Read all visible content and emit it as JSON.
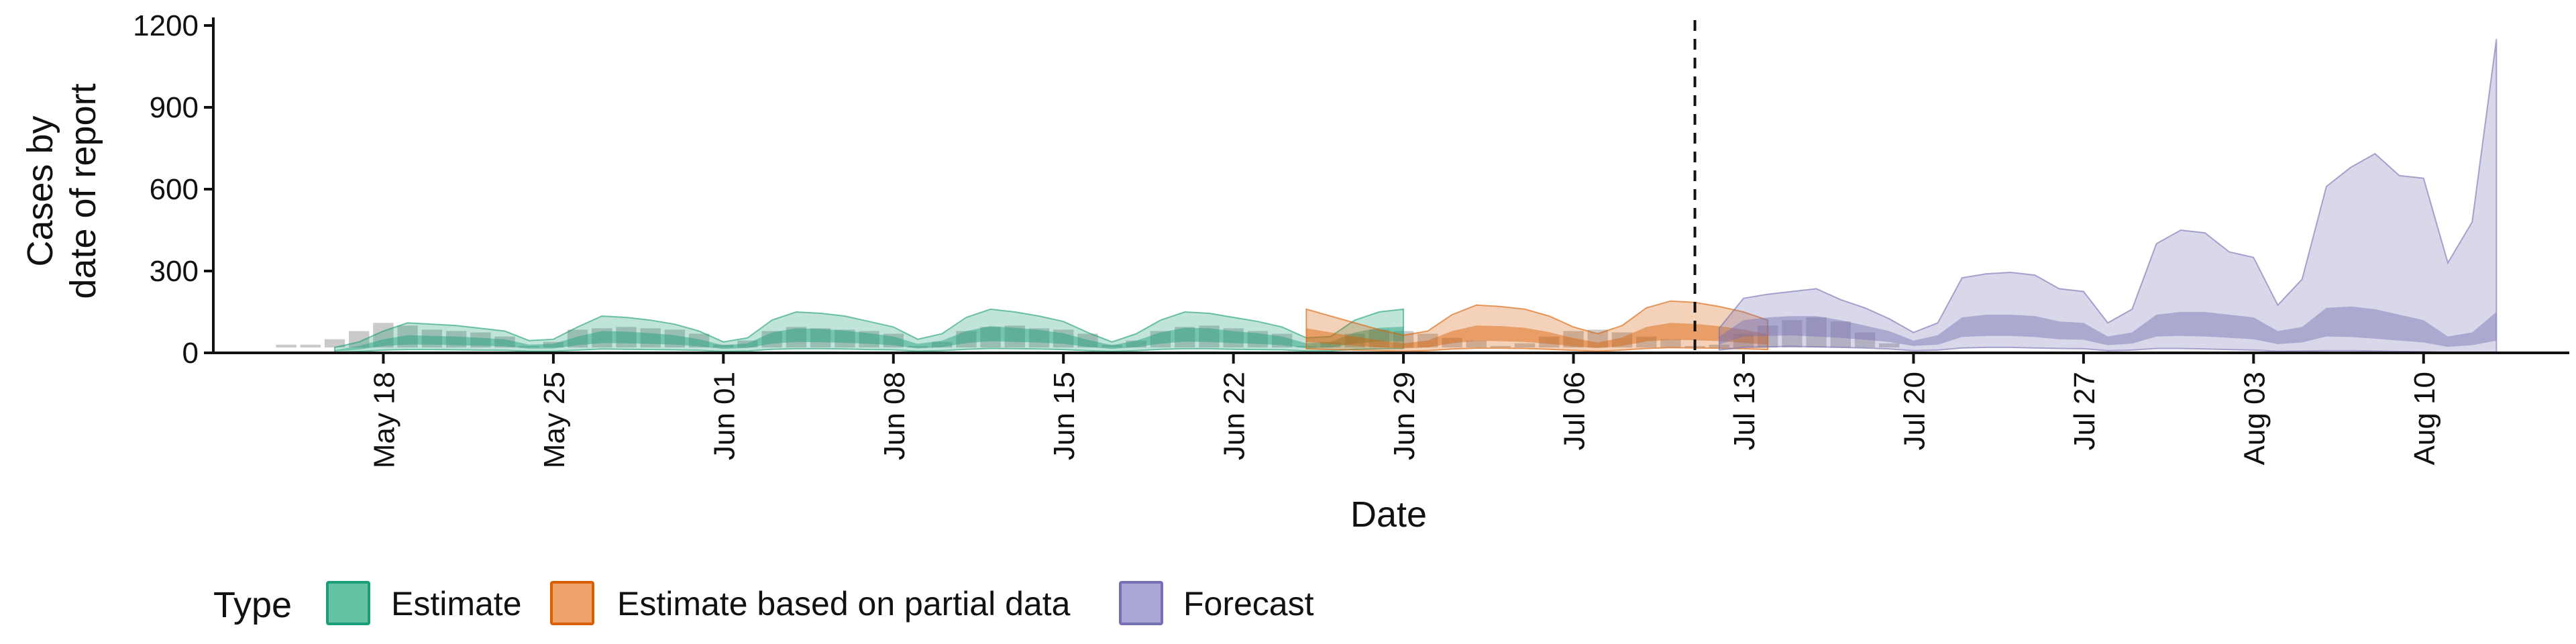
{
  "chart_data": {
    "type": "area",
    "xlabel": "Date",
    "ylabel_lines": [
      "Cases by",
      "date of report"
    ],
    "ylim": [
      0,
      1200
    ],
    "yticks": [
      0,
      300,
      600,
      900,
      1200
    ],
    "x_range": [
      "2020-05-11",
      "2020-08-16"
    ],
    "xticks": [
      {
        "date": "2020-05-18",
        "label": "May 18"
      },
      {
        "date": "2020-05-25",
        "label": "May 25"
      },
      {
        "date": "2020-06-01",
        "label": "Jun 01"
      },
      {
        "date": "2020-06-08",
        "label": "Jun 08"
      },
      {
        "date": "2020-06-15",
        "label": "Jun 15"
      },
      {
        "date": "2020-06-22",
        "label": "Jun 22"
      },
      {
        "date": "2020-06-29",
        "label": "Jun 29"
      },
      {
        "date": "2020-07-06",
        "label": "Jul 06"
      },
      {
        "date": "2020-07-13",
        "label": "Jul 13"
      },
      {
        "date": "2020-07-20",
        "label": "Jul 20"
      },
      {
        "date": "2020-07-27",
        "label": "Jul 27"
      },
      {
        "date": "2020-08-03",
        "label": "Aug 03"
      },
      {
        "date": "2020-08-10",
        "label": "Aug 10"
      }
    ],
    "forecast_line_date": "2020-07-11.8",
    "legend": {
      "title": "Type",
      "position": "bottom",
      "items": [
        {
          "label": "Estimate",
          "fill": "#66c2a5",
          "stroke": "#1b9e77"
        },
        {
          "label": "Estimate based on partial data",
          "fill": "#f0a36a",
          "stroke": "#d95f02"
        },
        {
          "label": "Forecast",
          "fill": "#aaa6d6",
          "stroke": "#7570b3"
        }
      ]
    },
    "colors": {
      "Estimate": "#1b9e77",
      "Estimate based on partial data": "#d95f02",
      "Forecast": "#7570b3",
      "Reported": "#9e9e9e"
    },
    "series": [
      {
        "name": "Estimate",
        "start": "2020-05-16",
        "outer_upper": [
          20,
          40,
          80,
          110,
          105,
          100,
          90,
          80,
          45,
          50,
          95,
          135,
          130,
          120,
          105,
          80,
          40,
          55,
          120,
          150,
          145,
          135,
          115,
          95,
          50,
          70,
          130,
          160,
          150,
          135,
          115,
          75,
          40,
          70,
          120,
          150,
          145,
          130,
          115,
          95,
          55,
          60,
          120,
          150,
          160
        ],
        "inner_upper": [
          10,
          25,
          50,
          65,
          62,
          60,
          55,
          50,
          30,
          33,
          60,
          80,
          78,
          72,
          65,
          50,
          28,
          35,
          75,
          90,
          88,
          82,
          72,
          60,
          33,
          45,
          80,
          98,
          92,
          84,
          72,
          48,
          28,
          45,
          75,
          92,
          90,
          80,
          72,
          60,
          35,
          40,
          75,
          92,
          96
        ],
        "inner_lower": [
          5,
          12,
          25,
          30,
          30,
          28,
          26,
          24,
          15,
          16,
          28,
          36,
          35,
          33,
          30,
          24,
          14,
          18,
          34,
          40,
          39,
          37,
          33,
          28,
          16,
          21,
          36,
          43,
          40,
          38,
          33,
          22,
          14,
          21,
          34,
          41,
          40,
          36,
          33,
          28,
          17,
          19,
          34,
          41,
          43
        ],
        "outer_lower": [
          2,
          5,
          10,
          12,
          12,
          11,
          10,
          9,
          6,
          6,
          10,
          14,
          13,
          12,
          11,
          9,
          5,
          7,
          13,
          15,
          15,
          14,
          12,
          11,
          6,
          8,
          13,
          16,
          15,
          14,
          12,
          8,
          5,
          8,
          13,
          15,
          15,
          13,
          12,
          11,
          7,
          7,
          13,
          15,
          16
        ]
      },
      {
        "name": "Estimate based on partial data",
        "start": "2020-06-25",
        "outer_upper": [
          160,
          135,
          110,
          85,
          65,
          80,
          140,
          175,
          170,
          160,
          135,
          95,
          70,
          100,
          165,
          190,
          185,
          170,
          150,
          120
        ],
        "inner_upper": [
          90,
          75,
          60,
          46,
          35,
          45,
          80,
          100,
          98,
          92,
          76,
          54,
          38,
          56,
          95,
          110,
          106,
          98,
          85,
          68
        ],
        "inner_lower": [
          40,
          33,
          26,
          20,
          16,
          20,
          35,
          44,
          43,
          40,
          33,
          24,
          17,
          25,
          42,
          48,
          46,
          43,
          37,
          30
        ],
        "outer_lower": [
          15,
          12,
          10,
          8,
          6,
          8,
          14,
          17,
          17,
          16,
          13,
          9,
          6,
          10,
          16,
          19,
          18,
          17,
          15,
          12
        ]
      },
      {
        "name": "Forecast",
        "start": "2020-07-12",
        "outer_upper": [
          90,
          200,
          215,
          225,
          235,
          195,
          165,
          125,
          75,
          110,
          275,
          290,
          295,
          285,
          235,
          225,
          110,
          160,
          400,
          450,
          440,
          370,
          350,
          175,
          270,
          610,
          680,
          730,
          650,
          640,
          330,
          480,
          1150
        ],
        "inner_upper": [
          60,
          120,
          130,
          135,
          135,
          120,
          100,
          80,
          45,
          65,
          130,
          140,
          140,
          135,
          115,
          110,
          60,
          75,
          140,
          150,
          150,
          140,
          130,
          80,
          95,
          165,
          170,
          160,
          140,
          120,
          60,
          75,
          150
        ],
        "inner_lower": [
          30,
          60,
          62,
          64,
          60,
          55,
          48,
          40,
          25,
          30,
          58,
          62,
          62,
          58,
          50,
          48,
          28,
          34,
          60,
          62,
          60,
          55,
          50,
          32,
          38,
          60,
          58,
          52,
          45,
          38,
          22,
          28,
          45
        ],
        "outer_lower": [
          10,
          20,
          22,
          24,
          22,
          20,
          18,
          14,
          8,
          10,
          18,
          20,
          20,
          18,
          16,
          15,
          8,
          10,
          16,
          16,
          14,
          12,
          10,
          6,
          7,
          8,
          8,
          7,
          5,
          4,
          2,
          2,
          3
        ]
      }
    ],
    "reported": {
      "start": "2020-05-14",
      "values": [
        30,
        30,
        50,
        80,
        110,
        100,
        85,
        80,
        75,
        60,
        25,
        40,
        85,
        90,
        95,
        90,
        85,
        70,
        30,
        45,
        80,
        95,
        90,
        85,
        80,
        70,
        25,
        40,
        80,
        95,
        100,
        90,
        85,
        70,
        30,
        45,
        80,
        95,
        100,
        90,
        80,
        70,
        25,
        40,
        70,
        85,
        80,
        70,
        55,
        45,
        25,
        35,
        60,
        80,
        85,
        75,
        60,
        50,
        25,
        30,
        70,
        100,
        120,
        130,
        115,
        75,
        35
      ]
    }
  }
}
